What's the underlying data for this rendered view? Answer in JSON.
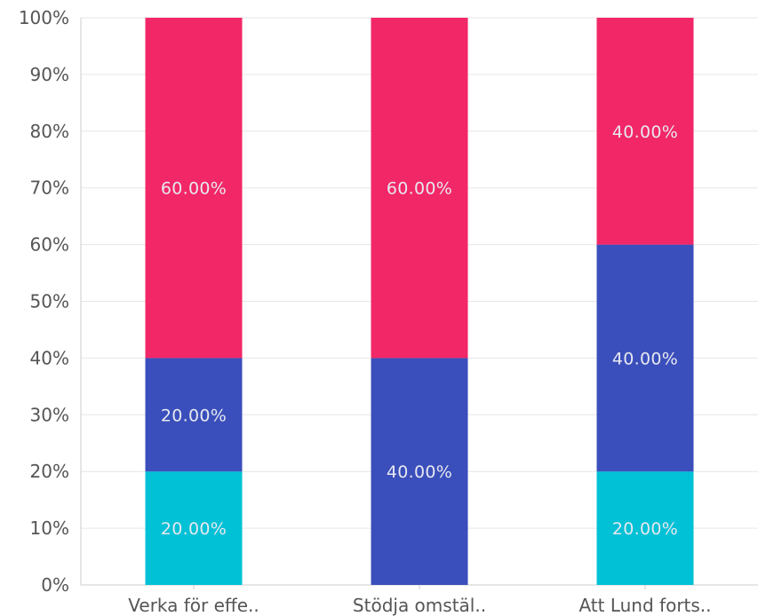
{
  "chart_data": {
    "type": "bar",
    "stacked": true,
    "categories": [
      "Verka för effe..",
      "Stödja omstäl..",
      "Att Lund forts.."
    ],
    "series": [
      {
        "color": "#00c1d5",
        "values": [
          20,
          0,
          20
        ]
      },
      {
        "color": "#3a4fbb",
        "values": [
          20,
          40,
          40
        ]
      },
      {
        "color": "#f22767",
        "values": [
          60,
          60,
          40
        ]
      }
    ],
    "data_labels": [
      [
        "20.00%",
        "",
        "20.00%"
      ],
      [
        "20.00%",
        "40.00%",
        "40.00%"
      ],
      [
        "60.00%",
        "60.00%",
        "40.00%"
      ]
    ],
    "ylim": [
      0,
      100
    ],
    "yticks": [
      "0%",
      "10%",
      "20%",
      "30%",
      "40%",
      "50%",
      "60%",
      "70%",
      "80%",
      "90%",
      "100%"
    ],
    "grid": true
  }
}
